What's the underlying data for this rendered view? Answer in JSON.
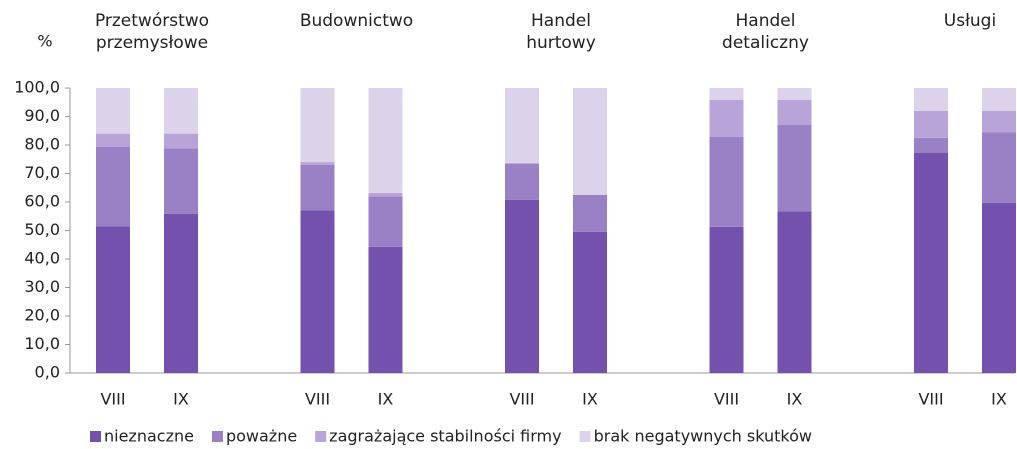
{
  "chart_data": {
    "type": "stacked-bar",
    "ylabel": "%",
    "groups": [
      "Przetwórstwo\nprzemysłowe",
      "Budownictwo",
      "Handel\nhurtowy",
      "Handel\ndetaliczny",
      "Usługi"
    ],
    "categories": [
      "VIII",
      "IX",
      "VIII",
      "IX",
      "VIII",
      "IX",
      "VIII",
      "IX",
      "VIII",
      "IX"
    ],
    "series": [
      {
        "name": "nieznaczne",
        "color": "#7451ac",
        "values": [
          51.5,
          55.8,
          57.0,
          44.3,
          60.8,
          49.5,
          51.3,
          56.7,
          77.2,
          59.7
        ]
      },
      {
        "name": "poważne",
        "color": "#9a80c4",
        "values": [
          27.8,
          23.0,
          16.0,
          17.7,
          12.7,
          13.0,
          31.5,
          30.3,
          5.3,
          24.8
        ]
      },
      {
        "name": "zagrażające stabilności firmy",
        "color": "#b8a4d8",
        "values": [
          4.7,
          5.2,
          1.0,
          1.2,
          0,
          0,
          13.0,
          8.8,
          9.5,
          7.5
        ]
      },
      {
        "name": "brak negatywnych skutków",
        "color": "#dcd2ea",
        "values": [
          16.0,
          16.0,
          26.0,
          36.8,
          26.5,
          37.5,
          4.2,
          4.2,
          8.0,
          8.0
        ]
      }
    ],
    "ylim": [
      0,
      100
    ],
    "yticks": [
      {
        "value": 0,
        "label": "0,0"
      },
      {
        "value": 10,
        "label": "10,0"
      },
      {
        "value": 20,
        "label": "20,0"
      },
      {
        "value": 30,
        "label": "30,0"
      },
      {
        "value": 40,
        "label": "40,0"
      },
      {
        "value": 50,
        "label": "50,0"
      },
      {
        "value": 60,
        "label": "60,0"
      },
      {
        "value": 70,
        "label": "70,0"
      },
      {
        "value": 80,
        "label": "80,0"
      },
      {
        "value": 90,
        "label": "90,0"
      },
      {
        "value": 100,
        "label": "100,0"
      }
    ]
  }
}
